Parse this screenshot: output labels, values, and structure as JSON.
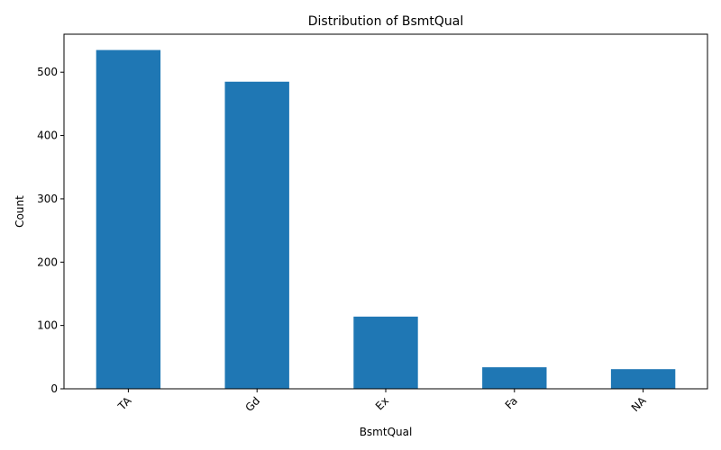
{
  "chart_data": {
    "type": "bar",
    "title": "Distribution of BsmtQual",
    "xlabel": "BsmtQual",
    "ylabel": "Count",
    "categories": [
      "TA",
      "Gd",
      "Ex",
      "Fa",
      "NA"
    ],
    "values": [
      535,
      485,
      114,
      34,
      31
    ],
    "ylim": [
      0,
      560
    ],
    "yticks": [
      0,
      100,
      200,
      300,
      400,
      500
    ],
    "grid": false,
    "bar_color": "#1f77b4"
  }
}
